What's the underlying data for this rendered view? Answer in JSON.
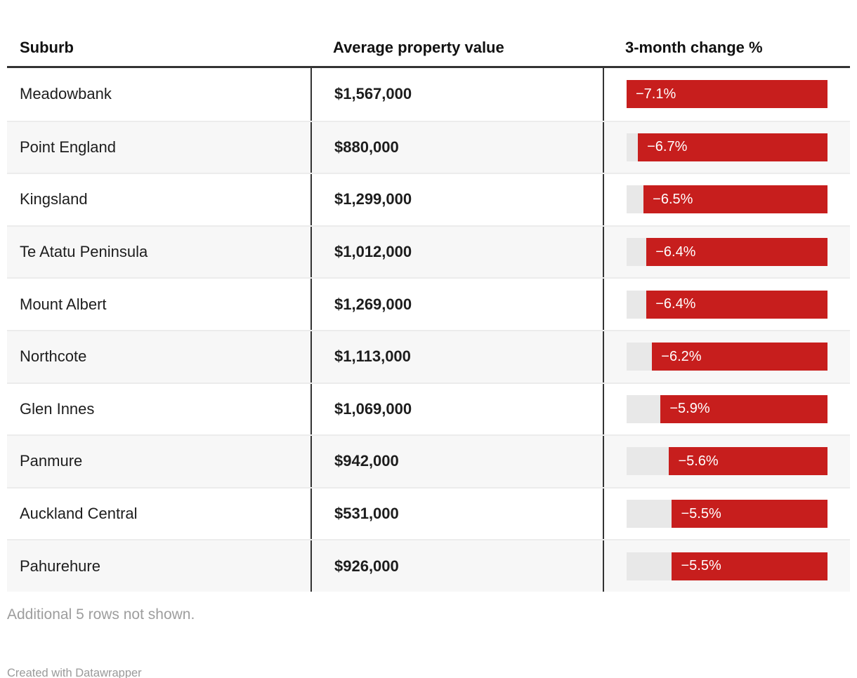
{
  "chart_data": {
    "type": "table",
    "title": "",
    "columns": [
      "Suburb",
      "Average property value",
      "3-month change %"
    ],
    "rows": [
      {
        "suburb": "Meadowbank",
        "avg_value": "$1,567,000",
        "change_pct": -7.1,
        "change_label": "−7.1%"
      },
      {
        "suburb": "Point England",
        "avg_value": "$880,000",
        "change_pct": -6.7,
        "change_label": "−6.7%"
      },
      {
        "suburb": "Kingsland",
        "avg_value": "$1,299,000",
        "change_pct": -6.5,
        "change_label": "−6.5%"
      },
      {
        "suburb": "Te Atatu Peninsula",
        "avg_value": "$1,012,000",
        "change_pct": -6.4,
        "change_label": "−6.4%"
      },
      {
        "suburb": "Mount Albert",
        "avg_value": "$1,269,000",
        "change_pct": -6.4,
        "change_label": "−6.4%"
      },
      {
        "suburb": "Northcote",
        "avg_value": "$1,113,000",
        "change_pct": -6.2,
        "change_label": "−6.2%"
      },
      {
        "suburb": "Glen Innes",
        "avg_value": "$1,069,000",
        "change_pct": -5.9,
        "change_label": "−5.9%"
      },
      {
        "suburb": "Panmure",
        "avg_value": "$942,000",
        "change_pct": -5.6,
        "change_label": "−5.6%"
      },
      {
        "suburb": "Auckland Central",
        "avg_value": "$531,000",
        "change_pct": -5.5,
        "change_label": "−5.5%"
      },
      {
        "suburb": "Pahurehure",
        "avg_value": "$926,000",
        "change_pct": -5.5,
        "change_label": "−5.5%"
      }
    ],
    "bar": {
      "column": "3-month change %",
      "axis_range": [
        -7.1,
        0
      ],
      "anchor": "right",
      "direction": "negative"
    },
    "layout": {
      "row_striping": true,
      "column_dividers": true
    }
  },
  "colors": {
    "bar_red": "#c71e1d",
    "bar_track_gray": "#e8e8e8",
    "row_alt_bg": "#f7f7f7",
    "divider_dark": "#333333",
    "footer_gray": "#9d9d9d"
  },
  "footer": {
    "note": "Additional 5 rows not shown.",
    "credit": "Created with Datawrapper"
  }
}
